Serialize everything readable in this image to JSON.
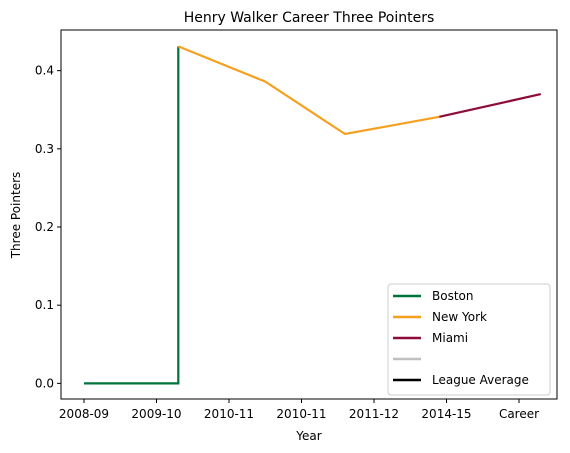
{
  "chart_data": {
    "type": "line",
    "title": "Henry Walker  Career Three Pointers",
    "xlabel": "Year",
    "ylabel": "Three Pointers",
    "x_categories": [
      "2008-09",
      "2009-10",
      "2010-11",
      "2010-11",
      "2011-12",
      "2014-15",
      "Career"
    ],
    "ylim": [
      -0.02,
      0.452
    ],
    "yticks": [
      0.0,
      0.1,
      0.2,
      0.3,
      0.4
    ],
    "ytick_labels": [
      "0.0",
      "0.1",
      "0.2",
      "0.3",
      "0.4"
    ],
    "grid": false,
    "legend_position": "lower right",
    "series": [
      {
        "name": "Boston",
        "color": "#00733a",
        "points": [
          [
            0,
            0.0
          ],
          [
            1.3,
            0.0
          ],
          [
            1.3,
            0.431
          ]
        ]
      },
      {
        "name": "New York",
        "color": "#f5a01f",
        "points": [
          [
            1.3,
            0.431
          ],
          [
            2.5,
            0.386
          ],
          [
            3.6,
            0.319
          ],
          [
            4.9,
            0.341
          ]
        ]
      },
      {
        "name": "Miami",
        "color": "#8e0c3a",
        "points": [
          [
            4.9,
            0.341
          ],
          [
            6.3,
            0.37
          ]
        ]
      },
      {
        "name": "",
        "color": "#bfbfbf",
        "points": []
      },
      {
        "name": "League Average",
        "color": "#000000",
        "points": []
      }
    ]
  }
}
